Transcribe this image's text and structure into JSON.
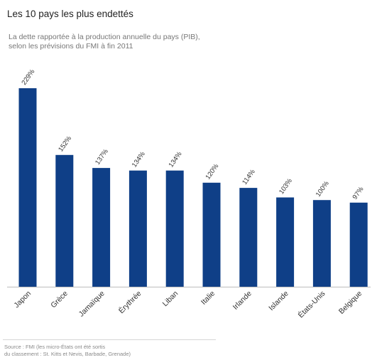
{
  "chart_data": {
    "type": "bar",
    "title": "Les 10 pays les plus endettés",
    "subtitle": "La dette rapportée à la production annuelle du pays (PIB),\nselon les prévisions du FMI à fin 2011",
    "categories": [
      "Japon",
      "Grèce",
      "Jamaïque",
      "Érythrée",
      "Liban",
      "Italie",
      "Irlande",
      "Islande",
      "États-Unis",
      "Belgique"
    ],
    "values": [
      229,
      152,
      137,
      134,
      134,
      120,
      114,
      103,
      100,
      97
    ],
    "value_labels": [
      "229%",
      "152%",
      "137%",
      "134%",
      "134%",
      "120%",
      "114%",
      "103%",
      "100%",
      "97%"
    ],
    "xlabel": "",
    "ylabel": "",
    "ylim": [
      0,
      229
    ],
    "grid": false,
    "legend": "none",
    "bar_color": "#0f3f87",
    "source": "Source : FMI (les micro-États ont été sortis\ndu classement : St. Kitts et Nevis, Barbade, Grenade)"
  }
}
